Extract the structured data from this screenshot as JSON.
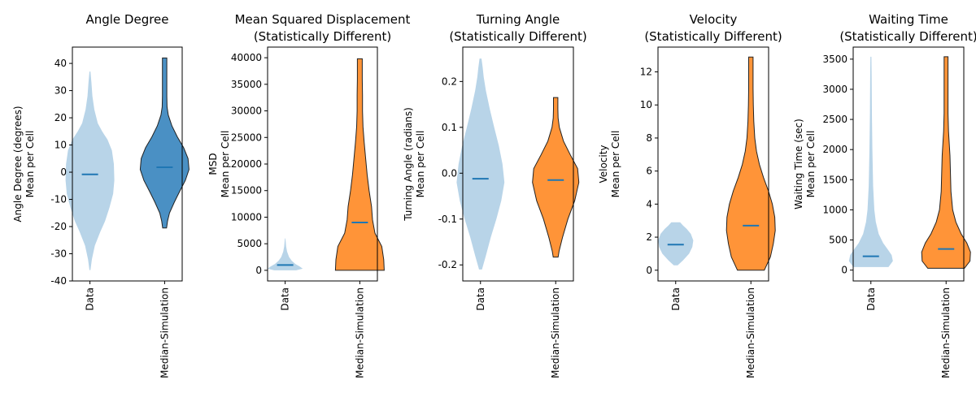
{
  "chart_data": [
    {
      "type": "violin",
      "title": "Angle Degree",
      "ylabel": "Angle Degree (degrees)\nMean per Cell",
      "categories": [
        "Data",
        "Median-Simulation"
      ],
      "ylim": [
        -40,
        46
      ],
      "yticks": [
        -40,
        -30,
        -20,
        -10,
        0,
        10,
        20,
        30,
        40
      ],
      "series": [
        {
          "min": -36,
          "max": 37,
          "median": -0.8,
          "color": "#b8d4e8",
          "profile": [
            [
              -36,
              0.02
            ],
            [
              -32,
              0.08
            ],
            [
              -27,
              0.2
            ],
            [
              -22,
              0.42
            ],
            [
              -18,
              0.62
            ],
            [
              -13,
              0.8
            ],
            [
              -8,
              0.95
            ],
            [
              -3,
              1.0
            ],
            [
              3,
              0.98
            ],
            [
              8,
              0.9
            ],
            [
              12,
              0.72
            ],
            [
              15,
              0.5
            ],
            [
              18,
              0.32
            ],
            [
              23,
              0.18
            ],
            [
              28,
              0.1
            ],
            [
              33,
              0.06
            ],
            [
              37,
              0.02
            ]
          ]
        },
        {
          "min": -20.5,
          "max": 42,
          "median": 1.8,
          "color": "#4a90c4",
          "edge": "#222222",
          "profile": [
            [
              -20.5,
              0.08
            ],
            [
              -18,
              0.12
            ],
            [
              -15,
              0.2
            ],
            [
              -11,
              0.4
            ],
            [
              -7,
              0.62
            ],
            [
              -3,
              0.85
            ],
            [
              1,
              1.0
            ],
            [
              5,
              0.96
            ],
            [
              9,
              0.78
            ],
            [
              13,
              0.52
            ],
            [
              17,
              0.3
            ],
            [
              21,
              0.15
            ],
            [
              24,
              0.1
            ],
            [
              28,
              0.09
            ],
            [
              34,
              0.09
            ],
            [
              38,
              0.09
            ],
            [
              42,
              0.09
            ]
          ]
        }
      ]
    },
    {
      "type": "violin",
      "title": "Mean Squared Displacement\n(Statistically Different)",
      "ylabel": "MSD\nMean per Cell",
      "categories": [
        "Data",
        "Median-Simulation"
      ],
      "ylim": [
        -2000,
        42000
      ],
      "yticks": [
        0,
        5000,
        10000,
        15000,
        20000,
        25000,
        30000,
        35000,
        40000
      ],
      "series": [
        {
          "min": 0,
          "max": 6000,
          "median": 1000,
          "color": "#b8d4e8",
          "profile": [
            [
              0,
              0.45
            ],
            [
              300,
              0.72
            ],
            [
              700,
              0.6
            ],
            [
              1200,
              0.42
            ],
            [
              1800,
              0.27
            ],
            [
              2500,
              0.16
            ],
            [
              3500,
              0.08
            ],
            [
              4500,
              0.04
            ],
            [
              6000,
              0.01
            ]
          ]
        },
        {
          "min": 0,
          "max": 39800,
          "median": 9000,
          "color": "#ff9438",
          "edge": "#222222",
          "profile": [
            [
              0,
              1.0
            ],
            [
              2000,
              0.98
            ],
            [
              4500,
              0.9
            ],
            [
              7000,
              0.62
            ],
            [
              9500,
              0.52
            ],
            [
              12000,
              0.48
            ],
            [
              15000,
              0.38
            ],
            [
              18000,
              0.3
            ],
            [
              21000,
              0.24
            ],
            [
              24000,
              0.18
            ],
            [
              27000,
              0.13
            ],
            [
              30000,
              0.11
            ],
            [
              33000,
              0.11
            ],
            [
              36000,
              0.1
            ],
            [
              39800,
              0.1
            ]
          ]
        }
      ]
    },
    {
      "type": "violin",
      "title": "Turning Angle\n(Statistically Different)",
      "ylabel": "Turning Angle (radians)\nMean per Cell",
      "categories": [
        "Data",
        "Median-Simulation"
      ],
      "ylim": [
        -0.235,
        0.275
      ],
      "yticks": [
        -0.2,
        -0.1,
        0.0,
        0.1,
        0.2
      ],
      "series": [
        {
          "min": -0.21,
          "max": 0.25,
          "median": -0.012,
          "color": "#b8d4e8",
          "profile": [
            [
              -0.21,
              0.06
            ],
            [
              -0.18,
              0.22
            ],
            [
              -0.14,
              0.42
            ],
            [
              -0.1,
              0.65
            ],
            [
              -0.06,
              0.85
            ],
            [
              -0.02,
              0.98
            ],
            [
              0.02,
              0.9
            ],
            [
              0.06,
              0.75
            ],
            [
              0.1,
              0.56
            ],
            [
              0.14,
              0.38
            ],
            [
              0.18,
              0.22
            ],
            [
              0.21,
              0.13
            ],
            [
              0.23,
              0.09
            ],
            [
              0.25,
              0.04
            ]
          ]
        },
        {
          "min": -0.183,
          "max": 0.165,
          "median": -0.015,
          "color": "#ff9438",
          "edge": "#222222",
          "profile": [
            [
              -0.183,
              0.1
            ],
            [
              -0.17,
              0.14
            ],
            [
              -0.14,
              0.28
            ],
            [
              -0.1,
              0.5
            ],
            [
              -0.06,
              0.78
            ],
            [
              -0.02,
              0.95
            ],
            [
              0.01,
              0.9
            ],
            [
              0.04,
              0.6
            ],
            [
              0.07,
              0.32
            ],
            [
              0.1,
              0.15
            ],
            [
              0.12,
              0.1
            ],
            [
              0.14,
              0.09
            ],
            [
              0.165,
              0.09
            ]
          ]
        }
      ]
    },
    {
      "type": "violin",
      "title": "Velocity\n(Statistically Different)",
      "ylabel": "Velocity\nMean per Cell",
      "categories": [
        "Data",
        "Median-Simulation"
      ],
      "ylim": [
        -0.65,
        13.5
      ],
      "yticks": [
        0,
        2,
        4,
        6,
        8,
        10,
        12
      ],
      "series": [
        {
          "min": 0.3,
          "max": 2.9,
          "median": 1.55,
          "color": "#b8d4e8",
          "profile": [
            [
              0.3,
              0.08
            ],
            [
              0.6,
              0.3
            ],
            [
              1.0,
              0.55
            ],
            [
              1.4,
              0.68
            ],
            [
              1.8,
              0.72
            ],
            [
              2.2,
              0.62
            ],
            [
              2.5,
              0.45
            ],
            [
              2.7,
              0.3
            ],
            [
              2.9,
              0.18
            ]
          ]
        },
        {
          "min": 0,
          "max": 12.9,
          "median": 2.7,
          "color": "#ff9438",
          "edge": "#222222",
          "profile": [
            [
              0,
              0.55
            ],
            [
              0.8,
              0.8
            ],
            [
              1.6,
              0.92
            ],
            [
              2.4,
              1.0
            ],
            [
              3.2,
              0.98
            ],
            [
              4.0,
              0.88
            ],
            [
              4.8,
              0.72
            ],
            [
              5.6,
              0.52
            ],
            [
              6.4,
              0.35
            ],
            [
              7.2,
              0.23
            ],
            [
              8.0,
              0.16
            ],
            [
              9.0,
              0.12
            ],
            [
              10.0,
              0.1
            ],
            [
              11.0,
              0.09
            ],
            [
              12.9,
              0.09
            ]
          ]
        }
      ]
    },
    {
      "type": "violin",
      "title": "Waiting Time\n(Statistically Different)",
      "ylabel": "Waiting Time (sec)\nMean per Cell",
      "categories": [
        "Data",
        "Median-Simulation"
      ],
      "ylim": [
        -180,
        3700
      ],
      "yticks": [
        0,
        500,
        1000,
        1500,
        2000,
        2500,
        3000,
        3500
      ],
      "series": [
        {
          "min": 50,
          "max": 3540,
          "median": 230,
          "color": "#b8d4e8",
          "profile": [
            [
              50,
              0.72
            ],
            [
              150,
              0.9
            ],
            [
              250,
              0.85
            ],
            [
              350,
              0.68
            ],
            [
              450,
              0.5
            ],
            [
              600,
              0.32
            ],
            [
              800,
              0.2
            ],
            [
              1000,
              0.14
            ],
            [
              1400,
              0.09
            ],
            [
              2000,
              0.06
            ],
            [
              2600,
              0.04
            ],
            [
              3200,
              0.03
            ],
            [
              3540,
              0.02
            ]
          ]
        },
        {
          "min": 30,
          "max": 3540,
          "median": 350,
          "color": "#ff9438",
          "edge": "#222222",
          "profile": [
            [
              30,
              0.75
            ],
            [
              150,
              0.98
            ],
            [
              300,
              1.0
            ],
            [
              450,
              0.85
            ],
            [
              600,
              0.62
            ],
            [
              800,
              0.4
            ],
            [
              1000,
              0.27
            ],
            [
              1300,
              0.2
            ],
            [
              1600,
              0.18
            ],
            [
              1900,
              0.16
            ],
            [
              2300,
              0.1
            ],
            [
              2600,
              0.08
            ],
            [
              3000,
              0.08
            ],
            [
              3540,
              0.08
            ]
          ]
        }
      ]
    }
  ]
}
